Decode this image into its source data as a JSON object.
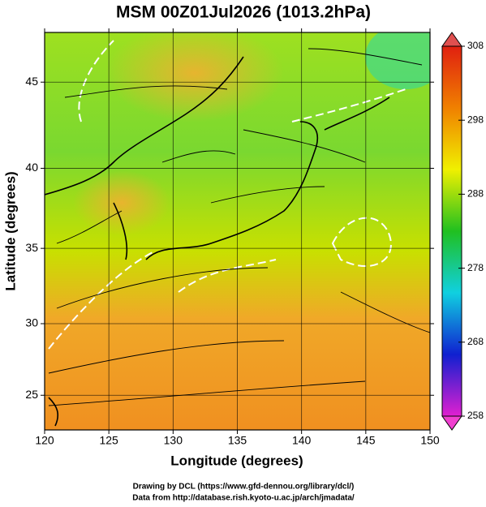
{
  "chart_data": {
    "type": "map",
    "title": "MSM 00Z01Jul2026 (1013.2hPa)",
    "xlabel": "Longitude (degrees)",
    "ylabel": "Latitude  (degrees)",
    "projection": "mercator",
    "xlim": [
      120,
      150
    ],
    "xticks": [
      120,
      125,
      130,
      135,
      140,
      145,
      150
    ],
    "ylim": [
      22.5,
      47.7
    ],
    "yticks": [
      25,
      30,
      35,
      40,
      45
    ],
    "grid": true,
    "colorbar": {
      "lim": [
        258,
        308
      ],
      "ticks": [
        258,
        268,
        278,
        288,
        298,
        308
      ],
      "colors": [
        "#e020d0",
        "#1020d0",
        "#10d0e0",
        "#20c020",
        "#f0f000",
        "#f08000",
        "#e02010"
      ]
    },
    "footnotes": [
      "Drawing by DCL (https://www.gfd-dennou.org/library/dcl/)",
      "Data from http://database.rish.kyoto-u.ac.jp/arch/jmadata/"
    ]
  }
}
